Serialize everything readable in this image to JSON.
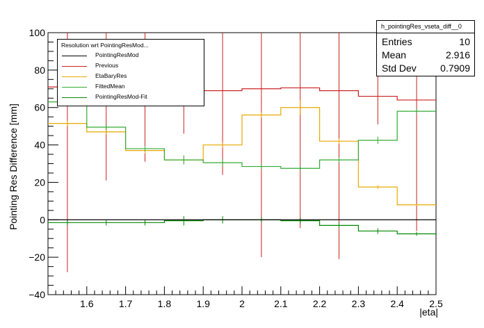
{
  "chart_data": {
    "type": "line",
    "title": "",
    "xlabel": "|eta|",
    "ylabel": "Pointing Res Difference [mm]",
    "xlim": [
      1.5,
      2.5
    ],
    "ylim": [
      -40,
      100
    ],
    "x_ticks": [
      "1.6",
      "1.7",
      "1.8",
      "1.9",
      "2",
      "2.1",
      "2.2",
      "2.3",
      "2.4",
      "2.5"
    ],
    "y_ticks": [
      "−40",
      "−20",
      "0",
      "20",
      "40",
      "60",
      "80",
      "100"
    ],
    "bin_edges": [
      1.5,
      1.6,
      1.7,
      1.8,
      1.9,
      2.0,
      2.1,
      2.2,
      2.3,
      2.4,
      2.5
    ],
    "legend_title": "Resolution wrt PointingResMod...",
    "series": [
      {
        "name": "PointingResMod",
        "color": "#000000",
        "values": [
          0,
          0,
          0,
          0,
          0,
          0,
          0,
          0,
          0,
          0
        ],
        "errors": [
          0,
          0,
          0,
          0,
          0,
          0,
          0,
          0,
          0,
          0
        ]
      },
      {
        "name": "Previous",
        "color": "#cc2020",
        "values": [
          71,
          70,
          70,
          70,
          69,
          70,
          70.5,
          69,
          66,
          64
        ],
        "errors": [
          99,
          49,
          39,
          24,
          45,
          90,
          75,
          90,
          15,
          70
        ]
      },
      {
        "name": "EtaBaryRes",
        "color": "#e8a800",
        "values": [
          51.5,
          47,
          37,
          32,
          40,
          56,
          60,
          42,
          17.5,
          8
        ],
        "errors": [
          1.5,
          1.5,
          1.5,
          1.5,
          1.5,
          1.5,
          4,
          1.5,
          1,
          0.5
        ]
      },
      {
        "name": "FittedMean",
        "color": "#33aa33",
        "values": [
          63,
          49.5,
          38,
          32,
          30.5,
          28.5,
          27.5,
          32,
          42.5,
          58
        ],
        "errors": [
          1.5,
          1.5,
          1.5,
          2.5,
          2,
          1.5,
          1.5,
          1.5,
          2,
          1.5
        ]
      },
      {
        "name": "PointingResMod-Fit",
        "color": "#008800",
        "values": [
          -1.5,
          -1.5,
          -1.5,
          -0.5,
          0,
          0,
          -0.5,
          -3,
          -6,
          -7.5
        ],
        "errors": [
          1.5,
          1.5,
          1.5,
          2.5,
          2,
          1.5,
          1.5,
          1.5,
          1.5,
          1
        ]
      }
    ]
  },
  "stats": {
    "title": "h_pointingRes_vseta_diff__0",
    "rows": [
      {
        "key": "Entries",
        "value": "10"
      },
      {
        "key": "Mean",
        "value": "2.916"
      },
      {
        "key": "Std Dev",
        "value": "0.7909"
      }
    ]
  }
}
